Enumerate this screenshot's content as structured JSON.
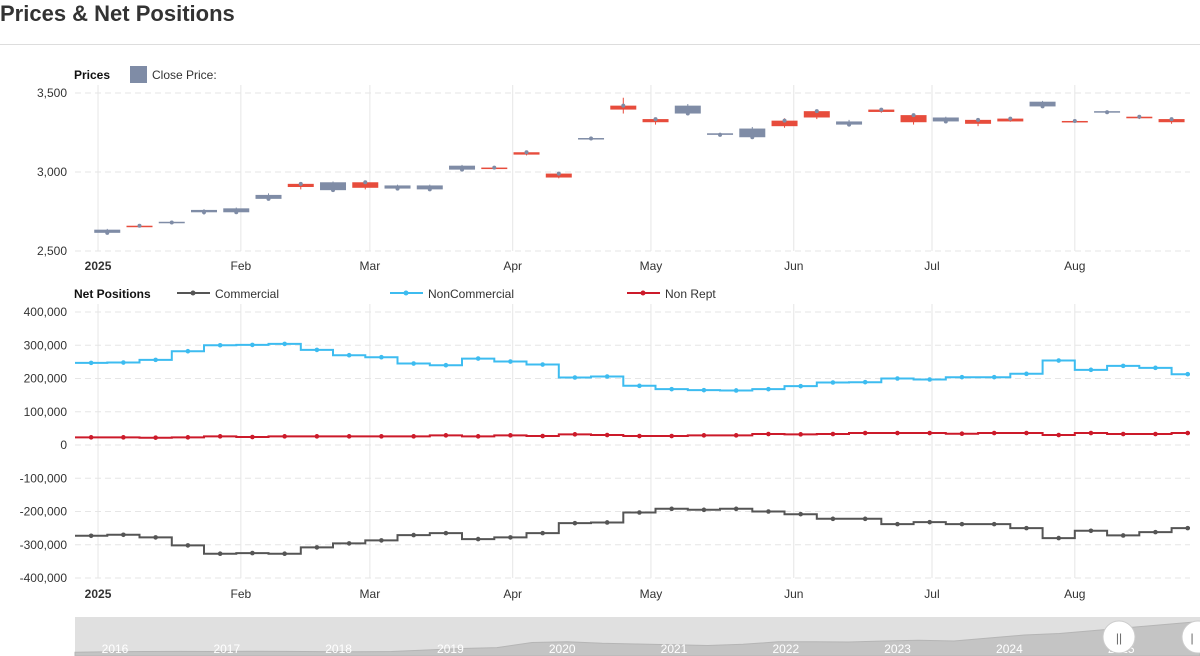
{
  "page": {
    "title": "Prices & Net Positions"
  },
  "colors": {
    "up": "#e74c3c",
    "down": "#7f8ca6",
    "commercial": "#555555",
    "noncommercial": "#3dbcf0",
    "nonrept": "#cc1a2a",
    "grid": "#e6e6e6",
    "navigator_bg": "#e0e0e0",
    "navigator_area": "#c4c4c4"
  },
  "chart_data": [
    {
      "type": "candlestick",
      "title": "Prices",
      "legend": [
        {
          "name": "Close Price:"
        }
      ],
      "legend_placement": "top-left",
      "ylim": [
        2500,
        3600
      ],
      "y_ticks": [
        "2,500",
        "3,000",
        "3,500"
      ],
      "x_ticks": [
        "2025",
        "Feb",
        "Mar",
        "Apr",
        "May",
        "Jun",
        "Jul",
        "Aug"
      ],
      "x_range": [
        "2024-12-27",
        "2025-08-26"
      ],
      "grid": true,
      "series": [
        {
          "name": "Close Price:",
          "ohlc": [
            {
              "date": "2025-01-03",
              "open": 2635,
              "high": 2640,
              "low": 2610,
              "close": 2615
            },
            {
              "date": "2025-01-10",
              "open": 2655,
              "high": 2670,
              "low": 2650,
              "close": 2660
            },
            {
              "date": "2025-01-17",
              "open": 2685,
              "high": 2690,
              "low": 2675,
              "close": 2680
            },
            {
              "date": "2025-01-24",
              "open": 2760,
              "high": 2765,
              "low": 2730,
              "close": 2745
            },
            {
              "date": "2025-01-31",
              "open": 2770,
              "high": 2775,
              "low": 2740,
              "close": 2745
            },
            {
              "date": "2025-02-07",
              "open": 2855,
              "high": 2865,
              "low": 2820,
              "close": 2830
            },
            {
              "date": "2025-02-14",
              "open": 2905,
              "high": 2935,
              "low": 2890,
              "close": 2925
            },
            {
              "date": "2025-02-21",
              "open": 2935,
              "high": 2940,
              "low": 2880,
              "close": 2885
            },
            {
              "date": "2025-02-28",
              "open": 2900,
              "high": 2940,
              "low": 2890,
              "close": 2935
            },
            {
              "date": "2025-03-07",
              "open": 2915,
              "high": 2920,
              "low": 2890,
              "close": 2895
            },
            {
              "date": "2025-03-14",
              "open": 2915,
              "high": 2920,
              "low": 2880,
              "close": 2890
            },
            {
              "date": "2025-03-21",
              "open": 3040,
              "high": 3045,
              "low": 3010,
              "close": 3015
            },
            {
              "date": "2025-03-28",
              "open": 3025,
              "high": 3030,
              "low": 3020,
              "close": 3028
            },
            {
              "date": "2025-04-04",
              "open": 3110,
              "high": 3135,
              "low": 3105,
              "close": 3125
            },
            {
              "date": "2025-04-11",
              "open": 2965,
              "high": 3000,
              "low": 2960,
              "close": 2990
            },
            {
              "date": "2025-04-18",
              "open": 3215,
              "high": 3225,
              "low": 3210,
              "close": 3212
            },
            {
              "date": "2025-04-25",
              "open": 3395,
              "high": 3470,
              "low": 3370,
              "close": 3420
            },
            {
              "date": "2025-05-02",
              "open": 3315,
              "high": 3345,
              "low": 3300,
              "close": 3335
            },
            {
              "date": "2025-05-09",
              "open": 3420,
              "high": 3430,
              "low": 3365,
              "close": 3370
            },
            {
              "date": "2025-05-16",
              "open": 3245,
              "high": 3250,
              "low": 3230,
              "close": 3235
            },
            {
              "date": "2025-05-23",
              "open": 3275,
              "high": 3285,
              "low": 3210,
              "close": 3220
            },
            {
              "date": "2025-05-30",
              "open": 3290,
              "high": 3340,
              "low": 3280,
              "close": 3325
            },
            {
              "date": "2025-06-06",
              "open": 3345,
              "high": 3390,
              "low": 3335,
              "close": 3385
            },
            {
              "date": "2025-06-13",
              "open": 3320,
              "high": 3330,
              "low": 3295,
              "close": 3300
            },
            {
              "date": "2025-06-20",
              "open": 3380,
              "high": 3400,
              "low": 3375,
              "close": 3395
            },
            {
              "date": "2025-06-27",
              "open": 3315,
              "high": 3370,
              "low": 3300,
              "close": 3360
            },
            {
              "date": "2025-07-04",
              "open": 3345,
              "high": 3350,
              "low": 3315,
              "close": 3320
            },
            {
              "date": "2025-07-11",
              "open": 3305,
              "high": 3340,
              "low": 3290,
              "close": 3330
            },
            {
              "date": "2025-07-18",
              "open": 3320,
              "high": 3345,
              "low": 3318,
              "close": 3338
            },
            {
              "date": "2025-07-25",
              "open": 3445,
              "high": 3450,
              "low": 3410,
              "close": 3415
            },
            {
              "date": "2025-08-01",
              "open": 3322,
              "high": 3325,
              "low": 3320,
              "close": 3323
            },
            {
              "date": "2025-08-08",
              "open": 3385,
              "high": 3390,
              "low": 3375,
              "close": 3378
            },
            {
              "date": "2025-08-15",
              "open": 3340,
              "high": 3355,
              "low": 3335,
              "close": 3350
            },
            {
              "date": "2025-08-22",
              "open": 3315,
              "high": 3340,
              "low": 3305,
              "close": 3335
            }
          ]
        }
      ]
    },
    {
      "type": "line",
      "step": true,
      "title": "Net Positions",
      "legend_placement": "top",
      "ylim": [
        -400000,
        400000
      ],
      "y_ticks": [
        "400,000",
        "300,000",
        "200,000",
        "100,000",
        "0",
        "-100,000",
        "-200,000",
        "-300,000",
        "-400,000"
      ],
      "x_ticks": [
        "2025",
        "Feb",
        "Mar",
        "Apr",
        "May",
        "Jun",
        "Jul",
        "Aug"
      ],
      "x": [
        "2024-12-27",
        "2025-01-03",
        "2025-01-10",
        "2025-01-17",
        "2025-01-24",
        "2025-01-31",
        "2025-02-07",
        "2025-02-14",
        "2025-02-21",
        "2025-02-28",
        "2025-03-07",
        "2025-03-14",
        "2025-03-21",
        "2025-03-28",
        "2025-04-04",
        "2025-04-11",
        "2025-04-18",
        "2025-04-25",
        "2025-05-02",
        "2025-05-09",
        "2025-05-16",
        "2025-05-23",
        "2025-05-30",
        "2025-06-06",
        "2025-06-13",
        "2025-06-20",
        "2025-06-27",
        "2025-07-04",
        "2025-07-11",
        "2025-07-18",
        "2025-07-25",
        "2025-08-01",
        "2025-08-08",
        "2025-08-15",
        "2025-08-22"
      ],
      "grid": true,
      "series": [
        {
          "name": "Commercial",
          "values": [
            -273000,
            -270000,
            -278000,
            -302000,
            -327000,
            -325000,
            -327000,
            -308000,
            -296000,
            -287000,
            -271000,
            -265000,
            -283000,
            -278000,
            -265000,
            -235000,
            -233000,
            -203000,
            -192000,
            -195000,
            -192000,
            -200000,
            -208000,
            -222000,
            -222000,
            -238000,
            -232000,
            -238000,
            -238000,
            -250000,
            -280000,
            -258000,
            -272000,
            -262000,
            -250000
          ]
        },
        {
          "name": "NonCommercial",
          "values": [
            247000,
            248000,
            256000,
            282000,
            300000,
            301000,
            304000,
            286000,
            270000,
            264000,
            245000,
            240000,
            260000,
            251000,
            242000,
            203000,
            206000,
            178000,
            168000,
            165000,
            164000,
            168000,
            177000,
            188000,
            189000,
            200000,
            197000,
            204000,
            204000,
            214000,
            254000,
            226000,
            238000,
            232000,
            213000
          ]
        },
        {
          "name": "Non Rept",
          "values": [
            23000,
            23000,
            22000,
            23000,
            26000,
            24000,
            26000,
            26000,
            26000,
            26000,
            26000,
            29000,
            26000,
            29000,
            27000,
            32000,
            30000,
            27000,
            27000,
            29000,
            29000,
            33000,
            32000,
            33000,
            36000,
            36000,
            36000,
            34000,
            36000,
            36000,
            30000,
            36000,
            33000,
            33000,
            36000
          ]
        }
      ]
    },
    {
      "type": "area",
      "title": "",
      "x_ticks": [
        "2016",
        "2017",
        "2018",
        "2019",
        "2020",
        "2021",
        "2022",
        "2023",
        "2024",
        "2025"
      ],
      "series": [
        {
          "name": "",
          "values": [
            1250,
            1280,
            1300,
            1310,
            1300,
            1320,
            1310,
            1290,
            1280,
            1300,
            1400,
            1500,
            1560,
            1900,
            1950,
            1850,
            1800,
            1750,
            1700,
            1780,
            1950,
            1950,
            1930,
            2000,
            2050,
            2000,
            2200,
            2400,
            2500,
            2700,
            2900,
            3100,
            3300
          ]
        }
      ]
    }
  ],
  "navigator": {
    "handle_left": "||",
    "handle_right": "|"
  }
}
